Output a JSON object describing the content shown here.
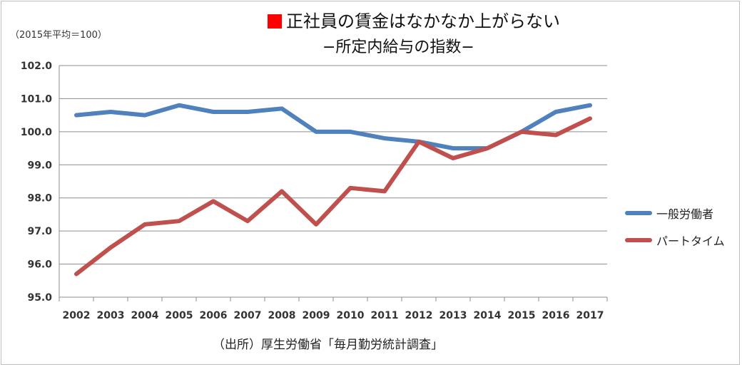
{
  "title": "正社員の賃金はなかなか上がらない",
  "subtitle": "−所定内給与の指数−",
  "unit_label": "（2015年平均＝100）",
  "source": "（出所）厚生労働省「毎月勤労統計調査」",
  "chart_data": {
    "type": "line",
    "x": [
      "2002",
      "2003",
      "2004",
      "2005",
      "2006",
      "2007",
      "2008",
      "2009",
      "2010",
      "2011",
      "2012",
      "2013",
      "2014",
      "2015",
      "2016",
      "2017"
    ],
    "ylim": [
      95.0,
      102.0
    ],
    "yticks": [
      "95.0",
      "96.0",
      "97.0",
      "98.0",
      "99.0",
      "100.0",
      "101.0",
      "102.0"
    ],
    "grid": true,
    "legend_position": "right",
    "series": [
      {
        "name": "一般労働者",
        "color": "#4f81bd",
        "values": [
          100.5,
          100.6,
          100.5,
          100.8,
          100.6,
          100.6,
          100.7,
          100.0,
          100.0,
          99.8,
          99.7,
          99.5,
          99.5,
          100.0,
          100.6,
          100.8
        ]
      },
      {
        "name": "パートタイム",
        "color": "#c0504d",
        "values": [
          95.7,
          96.5,
          97.2,
          97.3,
          97.9,
          97.3,
          98.2,
          97.2,
          98.3,
          98.2,
          99.7,
          99.2,
          99.5,
          100.0,
          99.9,
          100.4
        ]
      }
    ]
  }
}
